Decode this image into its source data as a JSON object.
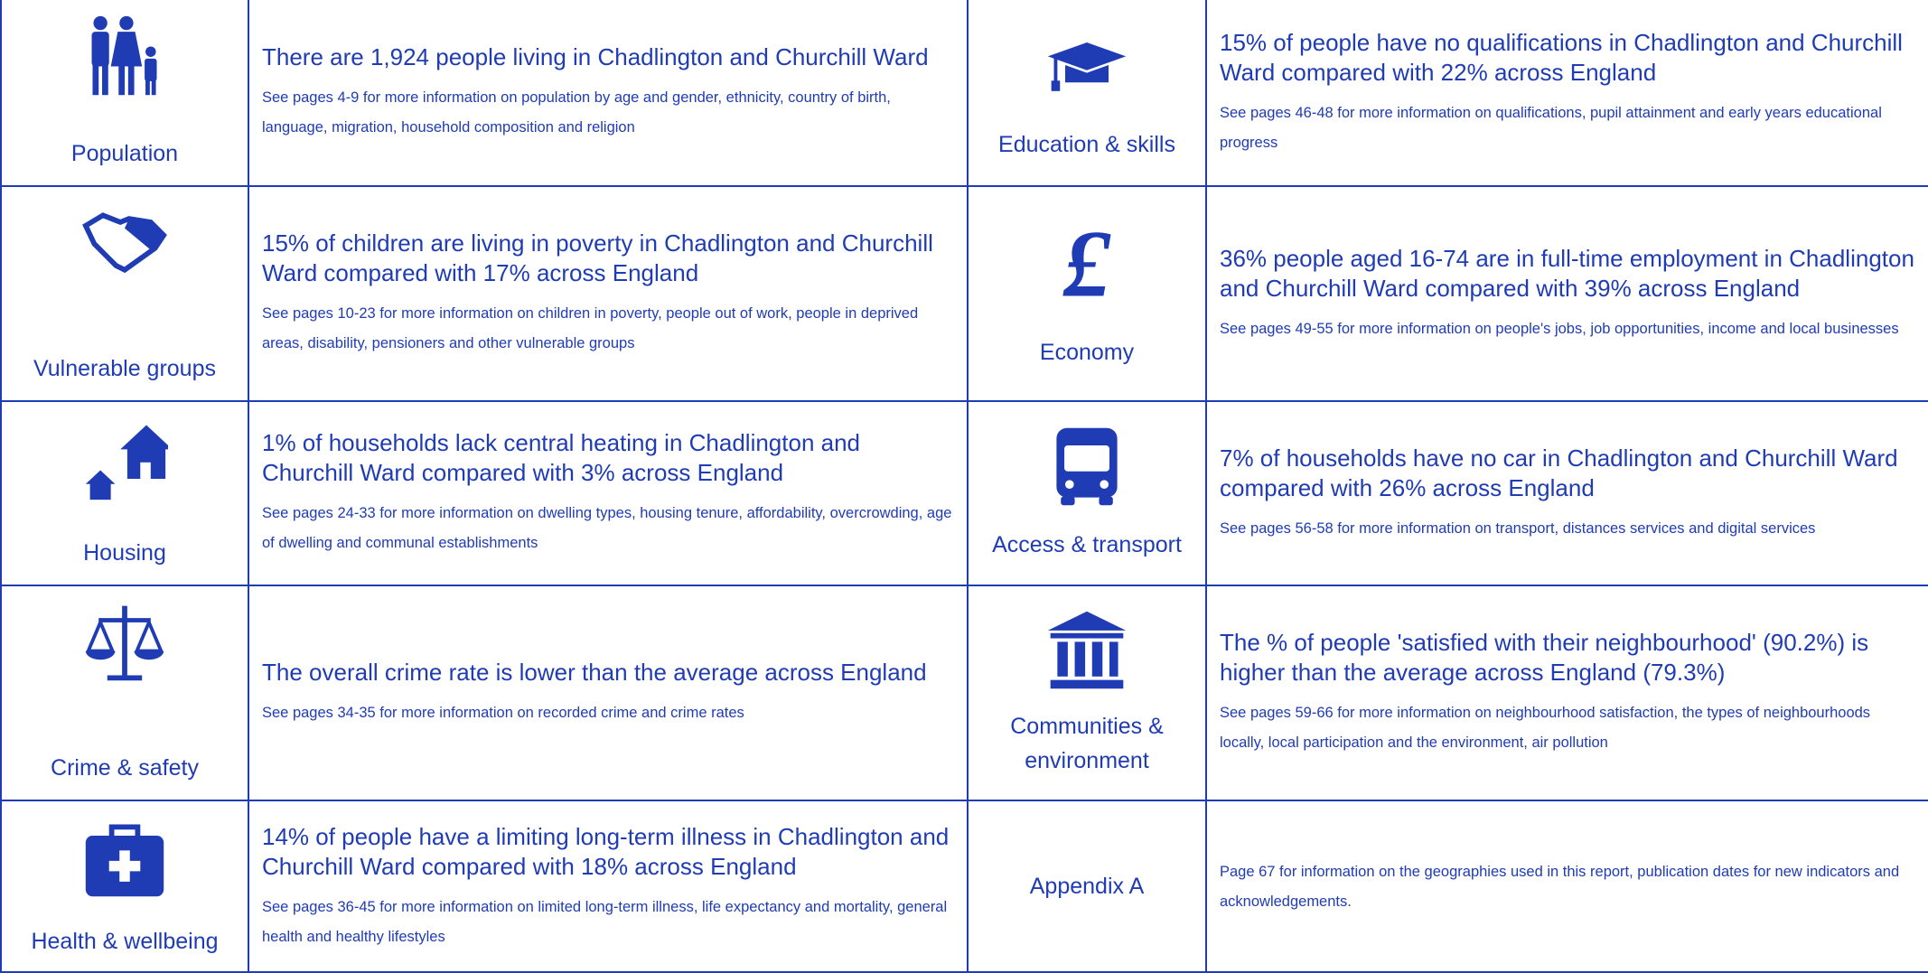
{
  "sections": [
    {
      "label": "Population",
      "headline": "There are 1,924 people living in Chadlington and Churchill Ward",
      "detail": "See pages 4-9 for more information on population by age and gender, ethnicity, country of birth, language, migration, household composition and religion"
    },
    {
      "label": "Vulnerable groups",
      "headline": "15% of children are living in poverty in Chadlington and Churchill Ward compared with 17% across England",
      "detail": "See pages 10-23 for more information on children in poverty, people out of work, people in deprived areas, disability, pensioners and other vulnerable groups"
    },
    {
      "label": "Housing",
      "headline": "1% of households lack central heating in Chadlington and Churchill Ward compared with 3% across England",
      "detail": "See pages 24-33 for more information on dwelling types, housing tenure, affordability, overcrowding, age of dwelling and communal establishments"
    },
    {
      "label": "Crime & safety",
      "headline": "The overall crime rate is lower than the average across England",
      "detail": "See pages 34-35 for more information on recorded crime and crime rates"
    },
    {
      "label": "Health & wellbeing",
      "headline": "14% of people have a limiting long-term illness in Chadlington and Churchill Ward compared with 18% across England",
      "detail": "See pages 36-45 for more information on limited long-term illness, life expectancy and mortality, general health and healthy lifestyles"
    },
    {
      "label": "Education & skills",
      "headline": "15% of people have no qualifications in Chadlington and Churchill Ward compared with 22% across England",
      "detail": "See pages 46-48 for more information on qualifications, pupil attainment and early years educational progress"
    },
    {
      "label": "Economy",
      "headline": "36% people aged 16-74 are in full-time employment in Chadlington and Churchill Ward compared with 39% across England",
      "detail": "See pages 49-55 for more information on people's jobs, job opportunities, income and local businesses"
    },
    {
      "label": "Access & transport",
      "headline": "7% of households have no car in Chadlington and Churchill Ward compared with 26% across England",
      "detail": "See pages 56-58 for more information on transport, distances services and digital services"
    },
    {
      "label": "Communities & environment",
      "headline": "The % of people 'satisfied with their neighbourhood' (90.2%) is higher than the average across England (79.3%)",
      "detail": "See pages 59-66 for more information on neighbourhood satisfaction, the types of neighbourhoods locally, local participation and the environment, air pollution"
    },
    {
      "label": "Appendix A",
      "detail": "Page 67 for information on the geographies used in this report, publication dates for new indicators and acknowledgements."
    }
  ]
}
